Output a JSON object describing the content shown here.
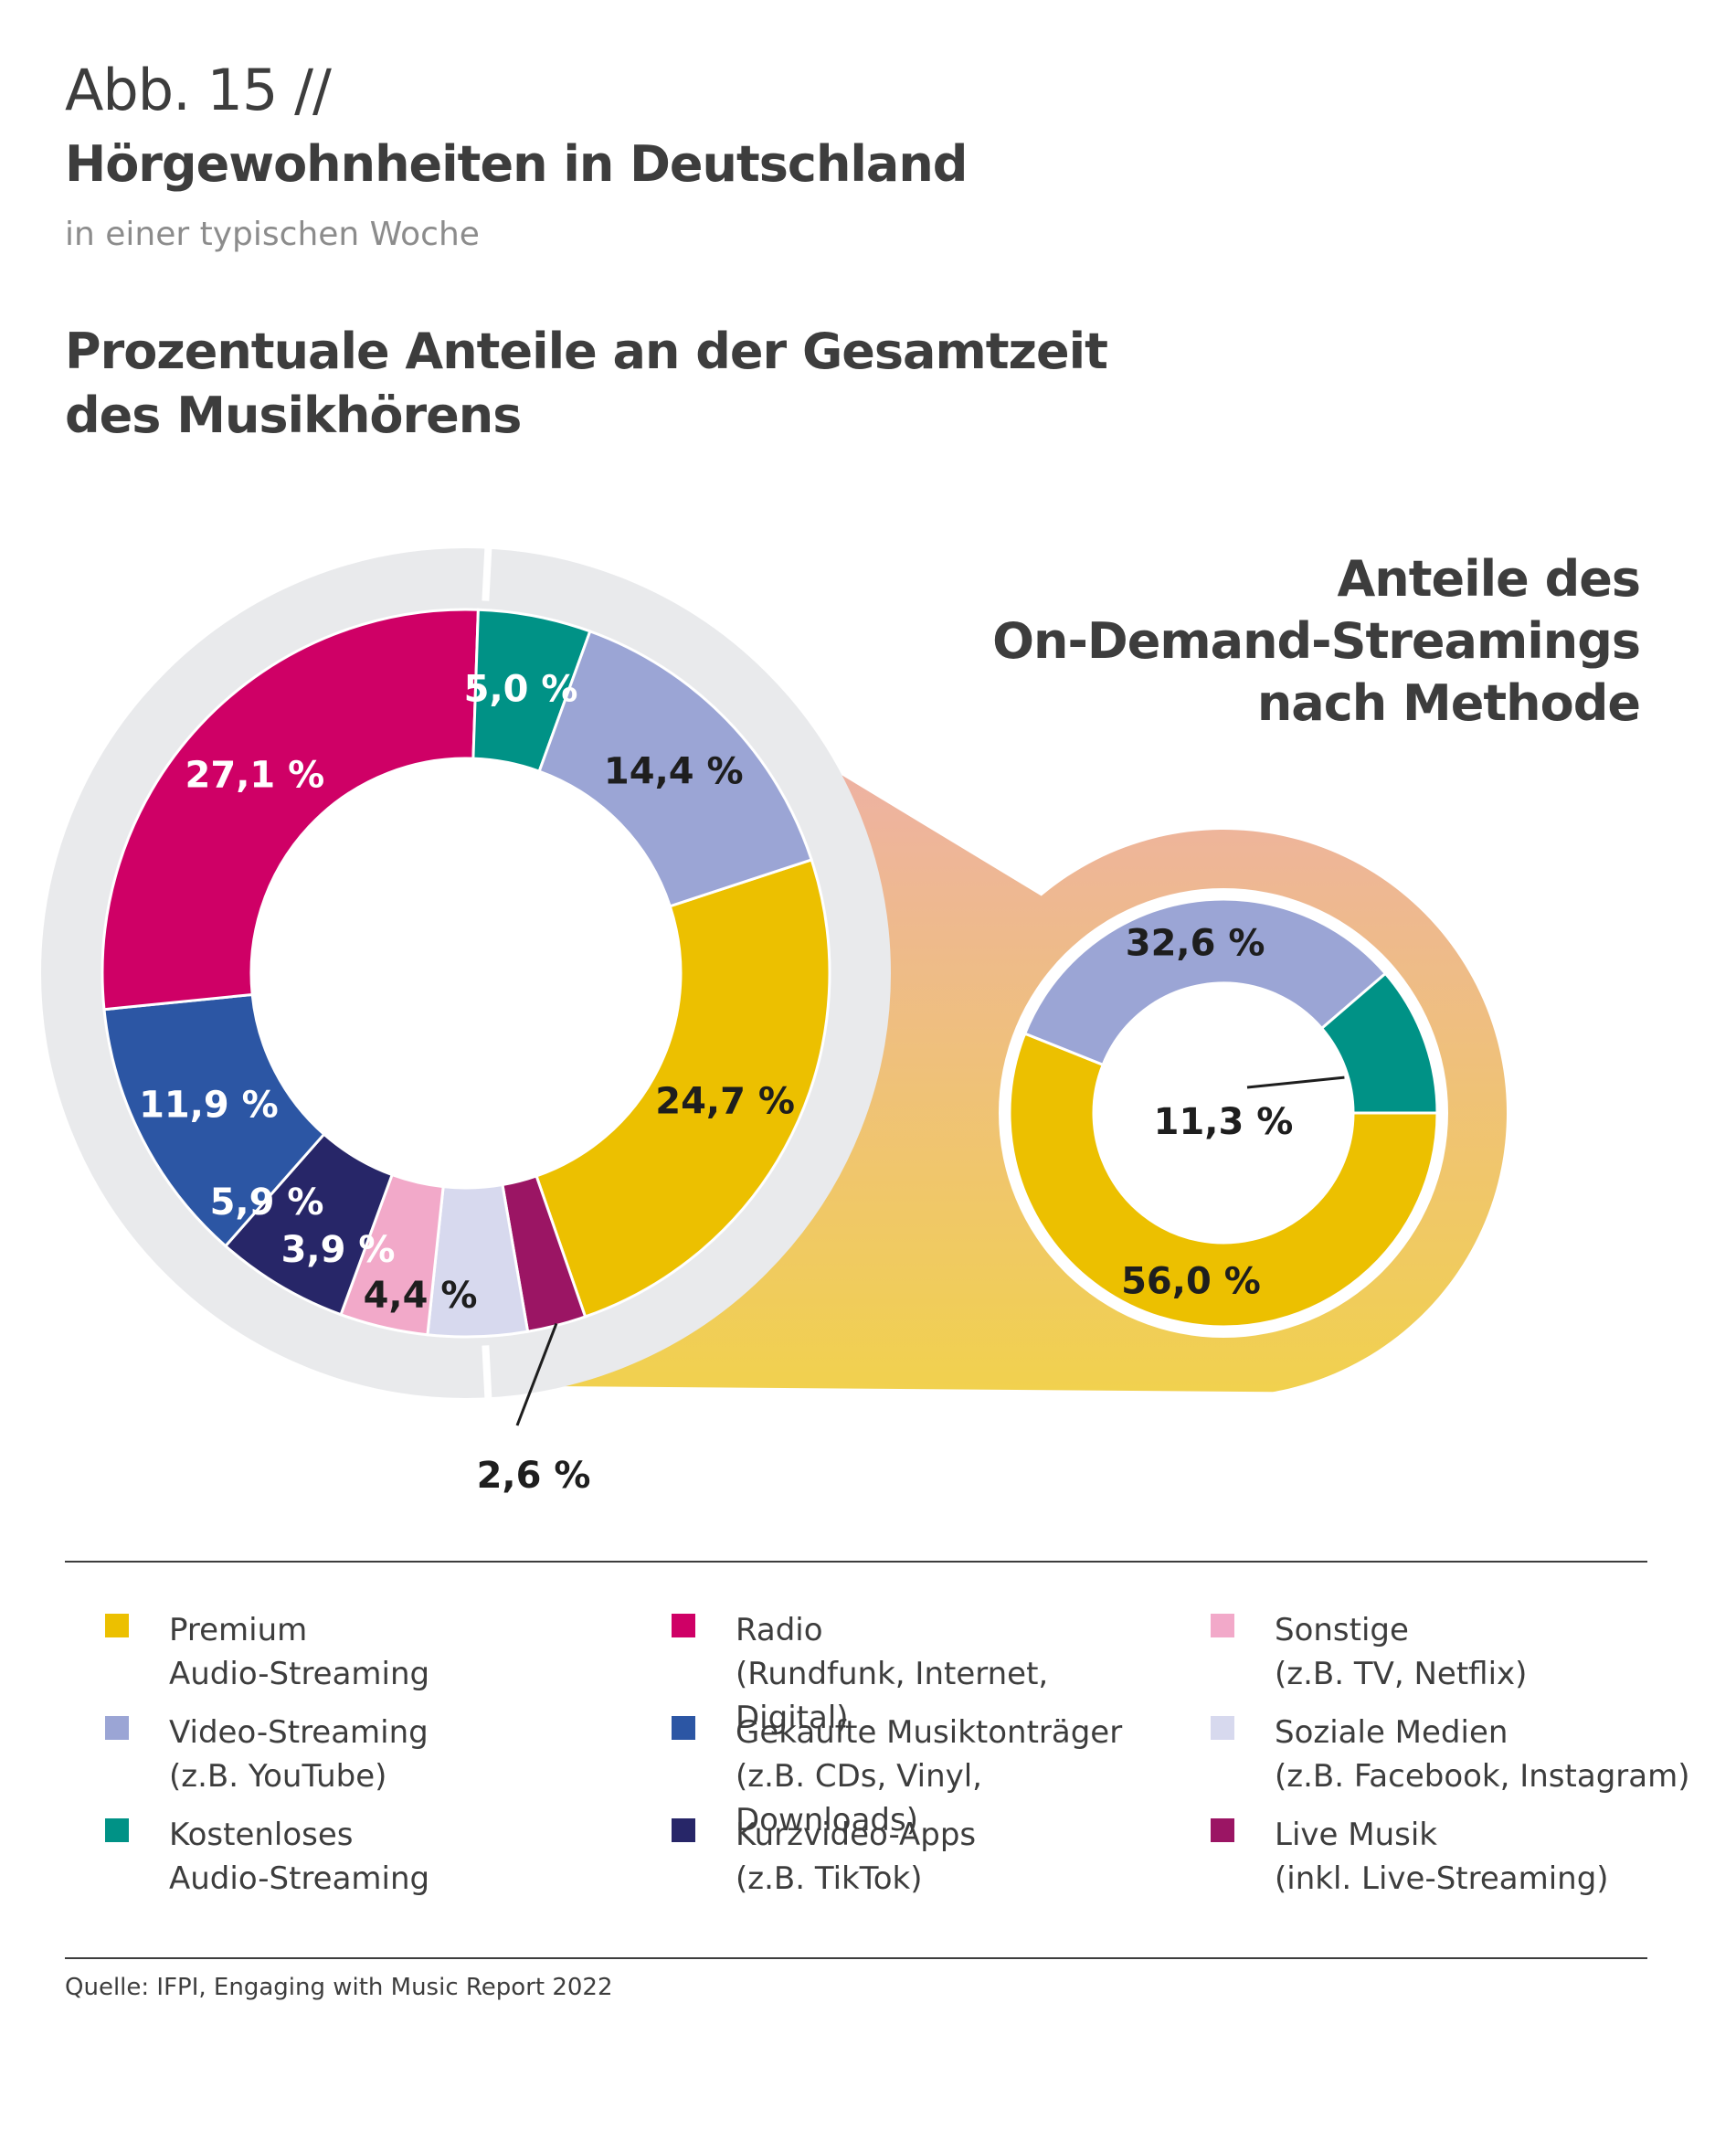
{
  "header": {
    "figure_label": "Abb. 15 //",
    "title": "Hörgewohnheiten in Deutschland",
    "subtitle": "in einer typischen Woche",
    "section_title": "Prozentuale Anteile an der Gesamtzeit\ndes Musikhörens",
    "inset_title": "Anteile des\nOn-Demand-Streamings\nnach Methode"
  },
  "chart_data": [
    {
      "type": "pie",
      "title": "Prozentuale Anteile an der Gesamtzeit des Musikhörens",
      "slices": [
        {
          "label": "Premium Audio-Streaming",
          "value": 24.7,
          "display": "24,7 %",
          "color": "#ecc000",
          "text_color": "#1e1e1e"
        },
        {
          "label": "Live Musik",
          "value": 2.6,
          "display": "2,6 %",
          "color": "#9b1564",
          "text_color": "#1e1e1e"
        },
        {
          "label": "Soziale Medien",
          "value": 4.4,
          "display": "4,4 %",
          "color": "#d7d9ee",
          "text_color": "#1e1e1e"
        },
        {
          "label": "Sonstige",
          "value": 3.9,
          "display": "3,9 %",
          "color": "#f2a9c9",
          "text_color": "#ffffff"
        },
        {
          "label": "Kurzvideo-Apps",
          "value": 5.9,
          "display": "5,9 %",
          "color": "#272668",
          "text_color": "#ffffff"
        },
        {
          "label": "Gekaufte Musiktonträger",
          "value": 11.9,
          "display": "11,9 %",
          "color": "#2c56a4",
          "text_color": "#ffffff"
        },
        {
          "label": "Radio",
          "value": 27.1,
          "display": "27,1 %",
          "color": "#cf0066",
          "text_color": "#ffffff"
        },
        {
          "label": "Kostenloses Audio-Streaming",
          "value": 5.0,
          "display": "5,0 %",
          "color": "#009286",
          "text_color": "#ffffff"
        },
        {
          "label": "Video-Streaming",
          "value": 14.4,
          "display": "14,4 %",
          "color": "#9ba5d5",
          "text_color": "#1e1e1e"
        }
      ]
    },
    {
      "type": "pie",
      "title": "Anteile des On-Demand-Streamings nach Methode",
      "slices": [
        {
          "label": "Premium Audio-Streaming",
          "value": 56.0,
          "display": "56,0 %",
          "color": "#ecc000",
          "text_color": "#1e1e1e"
        },
        {
          "label": "Video-Streaming",
          "value": 32.6,
          "display": "32,6 %",
          "color": "#9ba5d5",
          "text_color": "#1e1e1e"
        },
        {
          "label": "Kostenloses Audio-Streaming",
          "value": 11.3,
          "display": "11,3 %",
          "color": "#009286",
          "text_color": "#1e1e1e"
        }
      ]
    }
  ],
  "legend": [
    {
      "label": "Premium\nAudio-Streaming",
      "color": "#ecc000"
    },
    {
      "label": "Video-Streaming\n(z.B. YouTube)",
      "color": "#9ba5d5"
    },
    {
      "label": "Kostenloses\nAudio-Streaming",
      "color": "#009286"
    },
    {
      "label": "Radio\n(Rundfunk, Internet, Digital)",
      "color": "#cf0066"
    },
    {
      "label": "Gekaufte Musiktonträger\n(z.B. CDs, Vinyl, Downloads)",
      "color": "#2c56a4"
    },
    {
      "label": "Kurzvideo-Apps\n(z.B. TikTok)",
      "color": "#272668"
    },
    {
      "label": "Sonstige\n(z.B. TV, Netflix)",
      "color": "#f2a9c9"
    },
    {
      "label": "Soziale Medien\n(z.B. Facebook, Instagram)",
      "color": "#d7d9ee"
    },
    {
      "label": "Live Musik\n(inkl. Live-Streaming)",
      "color": "#9b1564"
    }
  ],
  "source": "Quelle: IFPI, Engaging with Music Report 2022"
}
